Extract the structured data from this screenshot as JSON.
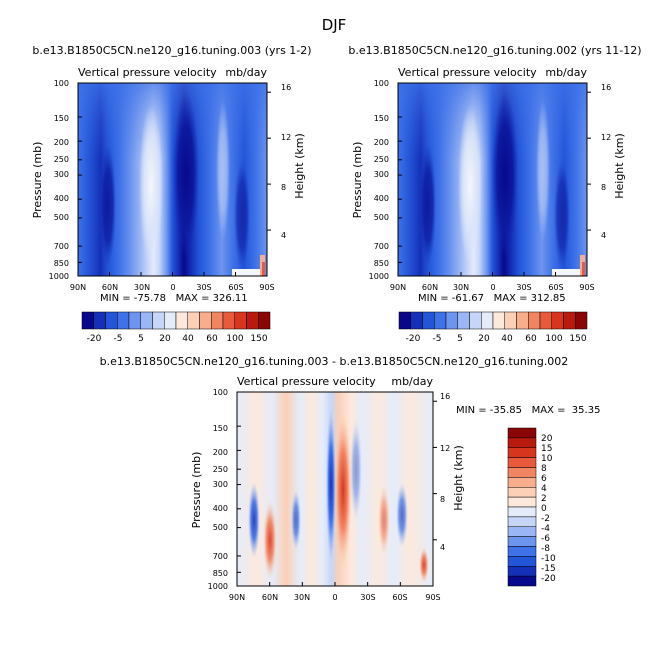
{
  "page_title": "DJF",
  "chart_data": [
    {
      "type": "heatmap",
      "title": "b.e13.B1850C5CN.ne120_g16.tuning.003 (yrs 1-2)",
      "left_subtitle": "Vertical pressure velocity",
      "right_subtitle": "mb/day",
      "ylabel": "Pressure (mb)",
      "ylabel_right": "Height (km)",
      "x_ticks": [
        "90N",
        "60N",
        "30N",
        "0",
        "30S",
        "60S",
        "90S"
      ],
      "y_ticks": [
        "100",
        "150",
        "200",
        "250",
        "300",
        "400",
        "500",
        "700",
        "850",
        "1000"
      ],
      "y_ticks_right": [
        "16",
        "12",
        "8",
        "4"
      ],
      "min_max": "MIN = -75.78   MAX = 326.11",
      "colorbar_labels": [
        "-20",
        "-5",
        "5",
        "20",
        "40",
        "60",
        "100",
        "150"
      ]
    },
    {
      "type": "heatmap",
      "title": "b.e13.B1850C5CN.ne120_g16.tuning.002 (yrs 11-12)",
      "left_subtitle": "Vertical pressure velocity",
      "right_subtitle": "mb/day",
      "ylabel": "Pressure (mb)",
      "ylabel_right": "Height (km)",
      "x_ticks": [
        "90N",
        "60N",
        "30N",
        "0",
        "30S",
        "60S",
        "90S"
      ],
      "y_ticks": [
        "100",
        "150",
        "200",
        "250",
        "300",
        "400",
        "500",
        "700",
        "850",
        "1000"
      ],
      "y_ticks_right": [
        "16",
        "12",
        "8",
        "4"
      ],
      "min_max": "MIN = -61.67   MAX = 312.85",
      "colorbar_labels": [
        "-20",
        "-5",
        "5",
        "20",
        "40",
        "60",
        "100",
        "150"
      ]
    },
    {
      "type": "heatmap",
      "title": "b.e13.B1850C5CN.ne120_g16.tuning.003 - b.e13.B1850C5CN.ne120_g16.tuning.002",
      "left_subtitle": "Vertical pressure velocity",
      "right_subtitle": "mb/day",
      "ylabel": "Pressure (mb)",
      "ylabel_right": "Height (km)",
      "x_ticks": [
        "90N",
        "60N",
        "30N",
        "0",
        "30S",
        "60S",
        "90S"
      ],
      "y_ticks": [
        "100",
        "150",
        "200",
        "250",
        "300",
        "400",
        "500",
        "700",
        "850",
        "1000"
      ],
      "y_ticks_right": [
        "16",
        "12",
        "8",
        "4"
      ],
      "min_max": "MIN = -35.85   MAX =  35.35",
      "colorbar_labels": [
        "20",
        "15",
        "10",
        "8",
        "6",
        "4",
        "2",
        "0",
        "-2",
        "-4",
        "-6",
        "-8",
        "-10",
        "-15",
        "-20"
      ]
    }
  ],
  "colors": {
    "abs_scale": [
      "#08088c",
      "#1530b8",
      "#2255d8",
      "#3f72e8",
      "#6d95f0",
      "#9bb6f4",
      "#c6d6f8",
      "#e4ecfa",
      "#fde9dc",
      "#fbd0b6",
      "#f8ae8c",
      "#f28561",
      "#e85a3b",
      "#d8351e",
      "#b81a0e",
      "#8a0606"
    ],
    "diff_scale": [
      "#8a0606",
      "#b81a0e",
      "#d8351e",
      "#e85a3b",
      "#f28561",
      "#f8ae8c",
      "#fbd0b6",
      "#fde9dc",
      "#e4ecfa",
      "#c6d6f8",
      "#9bb6f4",
      "#6d95f0",
      "#3f72e8",
      "#2255d8",
      "#1530b8",
      "#08088c"
    ]
  }
}
